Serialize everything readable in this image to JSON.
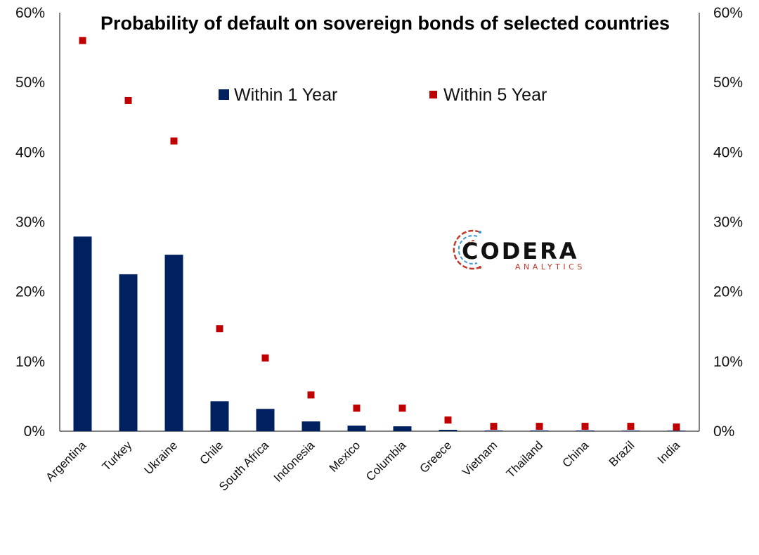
{
  "chart_data": {
    "type": "bar",
    "title": "Probability of default on sovereign bonds of selected countries",
    "categories": [
      "Argentina",
      "Turkey",
      "Ukraine",
      "Chile",
      "South Africa",
      "Indonesia",
      "Mexico",
      "Columbia",
      "Greece",
      "Vietnam",
      "Thailand",
      "China",
      "Brazil",
      "India"
    ],
    "series": [
      {
        "name": "Within 1 Year",
        "kind": "bar",
        "color": "#002060",
        "values": [
          27.9,
          22.5,
          25.3,
          4.3,
          3.2,
          1.4,
          0.8,
          0.7,
          0.2,
          0.1,
          0.1,
          0.1,
          0.05,
          0.05
        ]
      },
      {
        "name": "Within 5 Year",
        "kind": "marker",
        "color": "#c00000",
        "values": [
          56.0,
          47.4,
          41.6,
          14.7,
          10.5,
          5.2,
          3.3,
          3.3,
          1.6,
          0.7,
          0.7,
          0.7,
          0.7,
          0.6
        ]
      }
    ],
    "ylim": [
      0,
      60
    ],
    "yticks": [
      "0%",
      "10%",
      "20%",
      "30%",
      "40%",
      "50%",
      "60%"
    ],
    "y2ticks": [
      "0%",
      "10%",
      "20%",
      "30%",
      "40%",
      "50%",
      "60%"
    ],
    "grid": false,
    "legend_position": "top-center"
  },
  "logo": {
    "name": "CODERA",
    "tagline": "ANALYTICS",
    "accent_color": "#c0392b",
    "secondary_color": "#3a9bd5"
  }
}
